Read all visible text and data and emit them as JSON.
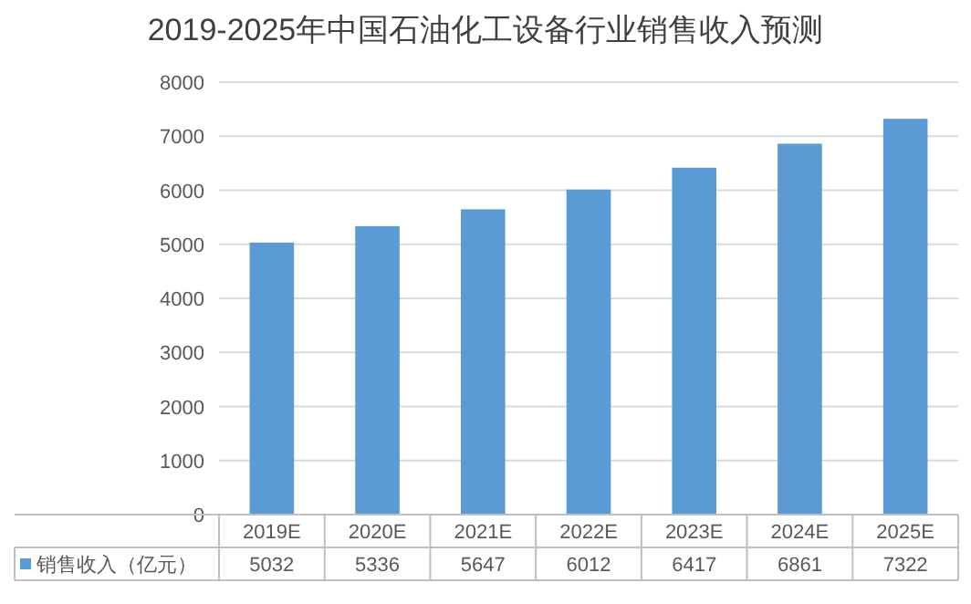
{
  "chart_data": {
    "type": "bar",
    "title": "2019-2025年中国石油化工设备行业销售收入预测",
    "categories": [
      "2019E",
      "2020E",
      "2021E",
      "2022E",
      "2023E",
      "2024E",
      "2025E"
    ],
    "series": [
      {
        "name": "销售收入（亿元）",
        "color": "#5b9bd5",
        "values": [
          5032,
          5336,
          5647,
          6012,
          6417,
          6861,
          7322
        ]
      }
    ],
    "ylim": [
      0,
      8000
    ],
    "yticks": [
      0,
      1000,
      2000,
      3000,
      4000,
      5000,
      6000,
      7000,
      8000
    ],
    "grid": "y",
    "legend": "bottom",
    "data_labels": true
  }
}
